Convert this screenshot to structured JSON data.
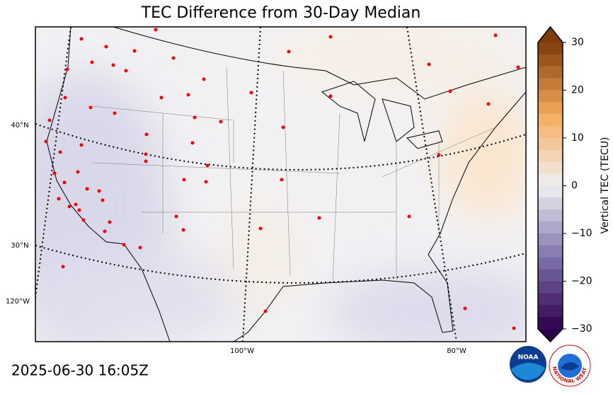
{
  "title": "TEC Difference from 30-Day Median",
  "map": {
    "lat_labels": [
      "40°N",
      "30°N"
    ],
    "lon_labels": [
      "120°W",
      "100°W",
      "80°W"
    ]
  },
  "colorbar": {
    "label": "Vertical TEC (TECU)",
    "lim": [
      -30,
      30
    ],
    "ticks": [
      30,
      20,
      10,
      0,
      {
        "value": -10,
        "label": "−10"
      },
      {
        "value": -20,
        "label": "−20"
      },
      {
        "value": -30,
        "label": "−30"
      }
    ]
  },
  "timestamp": "2025-06-30 16:05Z",
  "logos": {
    "noaa": "NOAA",
    "nws": "NATIONAL WEATHER SERVICE"
  }
}
